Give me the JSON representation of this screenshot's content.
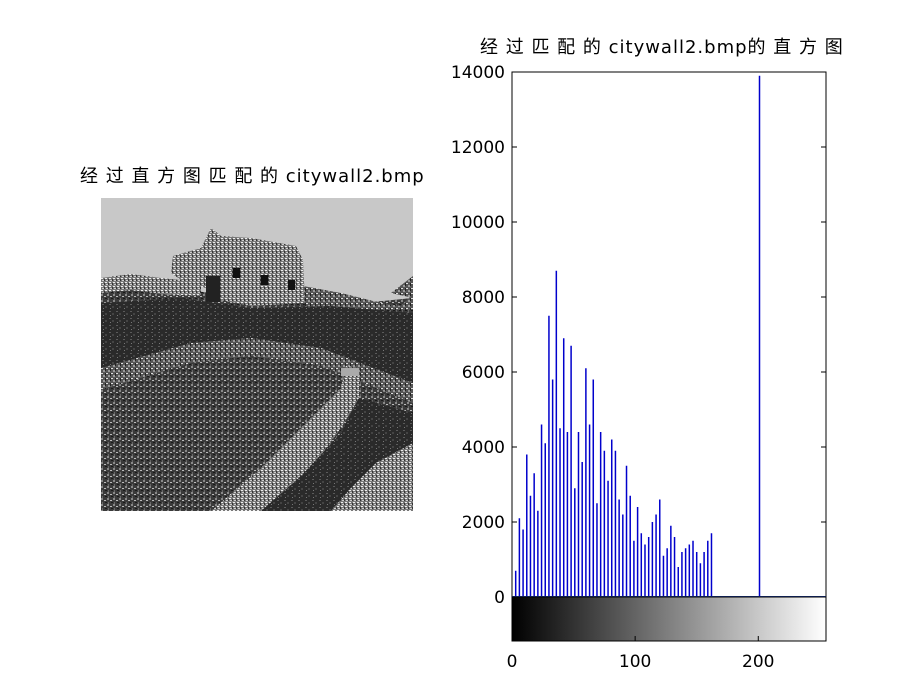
{
  "figure": {
    "left_title": "经 过 直 方 图 匹 配 的 citywall2.bmp",
    "right_title": "经 过 匹 配 的 citywall2.bmp的 直 方 图"
  },
  "image_panel": {
    "description_icon": "photo-great-wall-grayscale"
  },
  "chart_data": {
    "type": "bar",
    "title": "经 过 匹 配 的 citywall2.bmp的 直 方 图",
    "xlabel": "",
    "ylabel": "",
    "xlim": [
      0,
      255
    ],
    "ylim": [
      0,
      14000
    ],
    "x_ticks": [
      0,
      100,
      200
    ],
    "y_ticks": [
      0,
      2000,
      4000,
      6000,
      8000,
      10000,
      12000,
      14000
    ],
    "grid": false,
    "colorbar": "grayscale 0-255 below axis",
    "series": [
      {
        "color": "#0000cc",
        "x": [
          3,
          6,
          9,
          12,
          15,
          18,
          21,
          24,
          27,
          30,
          33,
          36,
          39,
          42,
          45,
          48,
          51,
          54,
          57,
          60,
          63,
          66,
          69,
          72,
          75,
          78,
          81,
          84,
          87,
          90,
          93,
          96,
          99,
          102,
          105,
          108,
          111,
          114,
          117,
          120,
          123,
          126,
          129,
          132,
          135,
          138,
          141,
          144,
          147,
          150,
          153,
          156,
          159,
          162,
          201
        ],
        "values": [
          700,
          2100,
          1800,
          3800,
          2700,
          3300,
          2300,
          4600,
          4100,
          7500,
          5800,
          8700,
          4500,
          6900,
          4400,
          6700,
          2900,
          4400,
          3600,
          6100,
          4600,
          5800,
          2500,
          4400,
          3900,
          3100,
          4200,
          3900,
          2600,
          2200,
          3500,
          2700,
          1500,
          2400,
          1700,
          1400,
          1600,
          2000,
          2200,
          2600,
          1100,
          1300,
          1900,
          1600,
          800,
          1200,
          1300,
          1400,
          1500,
          1200,
          900,
          1200,
          1500,
          1700,
          13900
        ]
      }
    ]
  }
}
